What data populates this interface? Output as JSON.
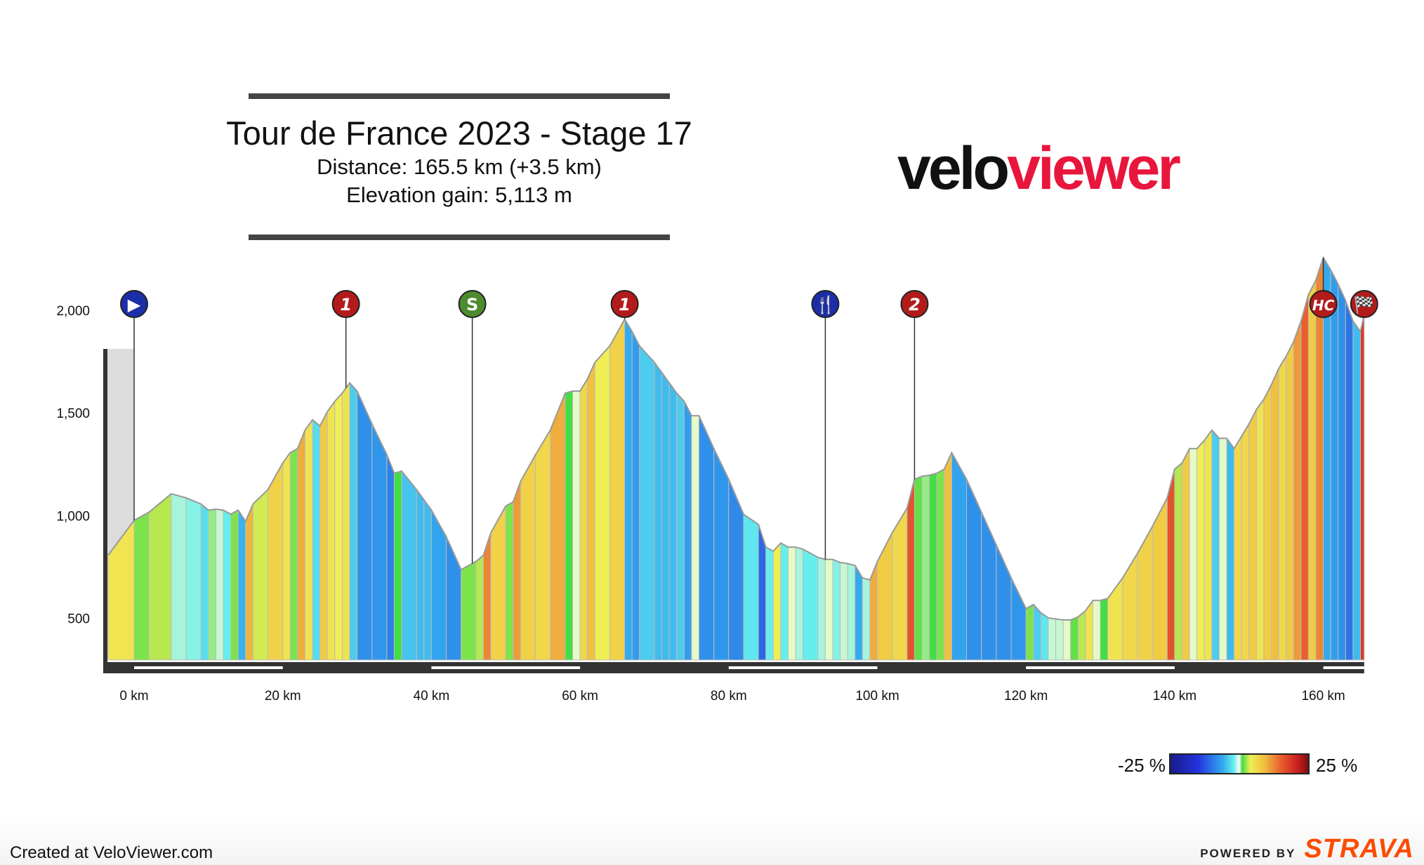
{
  "header": {
    "title": "Tour de France 2023 - Stage 17",
    "distance": "Distance: 165.5 km (+3.5 km)",
    "elevation_gain": "Elevation gain: 5,113 m"
  },
  "logo": {
    "part1": "velo",
    "part2": "viewer",
    "color_dark": "#111111",
    "color_accent": "#e8163c"
  },
  "legend": {
    "min_label": "-25 %",
    "max_label": "25 %"
  },
  "footer": {
    "created": "Created at VeloViewer.com",
    "powered_by": "POWERED BY",
    "strava": "STRAVA",
    "strava_color": "#fc4c02"
  },
  "chart_data": {
    "type": "area",
    "title": "Tour de France 2023 - Stage 17",
    "xlabel": "",
    "ylabel": "",
    "xlim": [
      -3.5,
      165.5
    ],
    "ylim": [
      300,
      2250
    ],
    "grid": false,
    "x_ticks": [
      0,
      20,
      40,
      60,
      80,
      100,
      120,
      140,
      160
    ],
    "x_tick_labels": [
      "0 km",
      "20 km",
      "40 km",
      "60 km",
      "80 km",
      "100 km",
      "120 km",
      "140 km",
      "160 km"
    ],
    "y_ticks": [
      500,
      1000,
      1500,
      2000
    ],
    "y_tick_labels": [
      "500",
      "1,000",
      "1,500",
      "2,000"
    ],
    "profile": [
      [
        -3.5,
        810
      ],
      [
        0,
        980
      ],
      [
        2,
        1020
      ],
      [
        5,
        1110
      ],
      [
        7,
        1090
      ],
      [
        9,
        1060
      ],
      [
        10,
        1030
      ],
      [
        11,
        1035
      ],
      [
        12,
        1030
      ],
      [
        13,
        1010
      ],
      [
        14,
        1030
      ],
      [
        15,
        975
      ],
      [
        16,
        1060
      ],
      [
        18,
        1130
      ],
      [
        20,
        1260
      ],
      [
        21,
        1310
      ],
      [
        22,
        1330
      ],
      [
        23,
        1420
      ],
      [
        24,
        1470
      ],
      [
        25,
        1440
      ],
      [
        26,
        1510
      ],
      [
        27,
        1560
      ],
      [
        28,
        1600
      ],
      [
        29,
        1650
      ],
      [
        30,
        1610
      ],
      [
        32,
        1450
      ],
      [
        34,
        1300
      ],
      [
        35,
        1210
      ],
      [
        36,
        1220
      ],
      [
        38,
        1130
      ],
      [
        39,
        1080
      ],
      [
        40,
        1030
      ],
      [
        42,
        900
      ],
      [
        44,
        740
      ],
      [
        46,
        780
      ],
      [
        47,
        810
      ],
      [
        48,
        920
      ],
      [
        50,
        1050
      ],
      [
        51,
        1070
      ],
      [
        52,
        1170
      ],
      [
        54,
        1300
      ],
      [
        56,
        1420
      ],
      [
        58,
        1600
      ],
      [
        59,
        1610
      ],
      [
        60,
        1610
      ],
      [
        61,
        1670
      ],
      [
        62,
        1750
      ],
      [
        64,
        1830
      ],
      [
        66,
        1960
      ],
      [
        67,
        1900
      ],
      [
        68,
        1830
      ],
      [
        70,
        1750
      ],
      [
        71,
        1700
      ],
      [
        72,
        1650
      ],
      [
        73,
        1600
      ],
      [
        74,
        1560
      ],
      [
        75,
        1490
      ],
      [
        76,
        1490
      ],
      [
        78,
        1330
      ],
      [
        80,
        1180
      ],
      [
        82,
        1010
      ],
      [
        84,
        960
      ],
      [
        85,
        850
      ],
      [
        86,
        830
      ],
      [
        87,
        870
      ],
      [
        88,
        850
      ],
      [
        89,
        850
      ],
      [
        90,
        840
      ],
      [
        92,
        800
      ],
      [
        93,
        790
      ],
      [
        94,
        790
      ],
      [
        95,
        775
      ],
      [
        96,
        770
      ],
      [
        97,
        760
      ],
      [
        98,
        700
      ],
      [
        99,
        690
      ],
      [
        100,
        780
      ],
      [
        102,
        920
      ],
      [
        104,
        1040
      ],
      [
        105,
        1180
      ],
      [
        106,
        1195
      ],
      [
        107,
        1200
      ],
      [
        108,
        1210
      ],
      [
        109,
        1230
      ],
      [
        110,
        1310
      ],
      [
        112,
        1180
      ],
      [
        114,
        1020
      ],
      [
        116,
        860
      ],
      [
        118,
        700
      ],
      [
        120,
        550
      ],
      [
        121,
        570
      ],
      [
        122,
        530
      ],
      [
        123,
        505
      ],
      [
        124,
        500
      ],
      [
        125,
        495
      ],
      [
        126,
        495
      ],
      [
        127,
        510
      ],
      [
        128,
        540
      ],
      [
        129,
        590
      ],
      [
        130,
        590
      ],
      [
        131,
        600
      ],
      [
        133,
        700
      ],
      [
        135,
        820
      ],
      [
        137,
        950
      ],
      [
        139,
        1090
      ],
      [
        140,
        1230
      ],
      [
        141,
        1260
      ],
      [
        142,
        1330
      ],
      [
        143,
        1330
      ],
      [
        144,
        1370
      ],
      [
        145,
        1420
      ],
      [
        146,
        1380
      ],
      [
        147,
        1380
      ],
      [
        148,
        1330
      ],
      [
        149,
        1390
      ],
      [
        150,
        1450
      ],
      [
        151,
        1520
      ],
      [
        152,
        1570
      ],
      [
        153,
        1640
      ],
      [
        154,
        1720
      ],
      [
        155,
        1780
      ],
      [
        156,
        1850
      ],
      [
        157,
        1950
      ],
      [
        158,
        2080
      ],
      [
        159,
        2150
      ],
      [
        160,
        2260
      ],
      [
        161,
        2200
      ],
      [
        162,
        2130
      ],
      [
        163,
        2050
      ],
      [
        164,
        1950
      ],
      [
        165,
        1900
      ],
      [
        165.5,
        1980
      ]
    ],
    "markers": [
      {
        "km": 0,
        "label": "▶",
        "type": "start",
        "color": "#1c2fa8"
      },
      {
        "km": 28.5,
        "label": "1",
        "type": "climb-cat-1",
        "color": "#b31b1b"
      },
      {
        "km": 45.5,
        "label": "S",
        "type": "sprint",
        "color": "#4e8a2e"
      },
      {
        "km": 66,
        "label": "1",
        "type": "climb-cat-1",
        "color": "#b31b1b"
      },
      {
        "km": 93,
        "label": "🍴",
        "type": "feed",
        "color": "#1c2fa8"
      },
      {
        "km": 105,
        "label": "2",
        "type": "climb-cat-2",
        "color": "#b31b1b"
      },
      {
        "km": 160,
        "label": "HC",
        "type": "climb-hc",
        "color": "#b31b1b"
      },
      {
        "km": 165.5,
        "label": "🏁",
        "type": "finish",
        "color": "#b31b1b"
      }
    ]
  }
}
